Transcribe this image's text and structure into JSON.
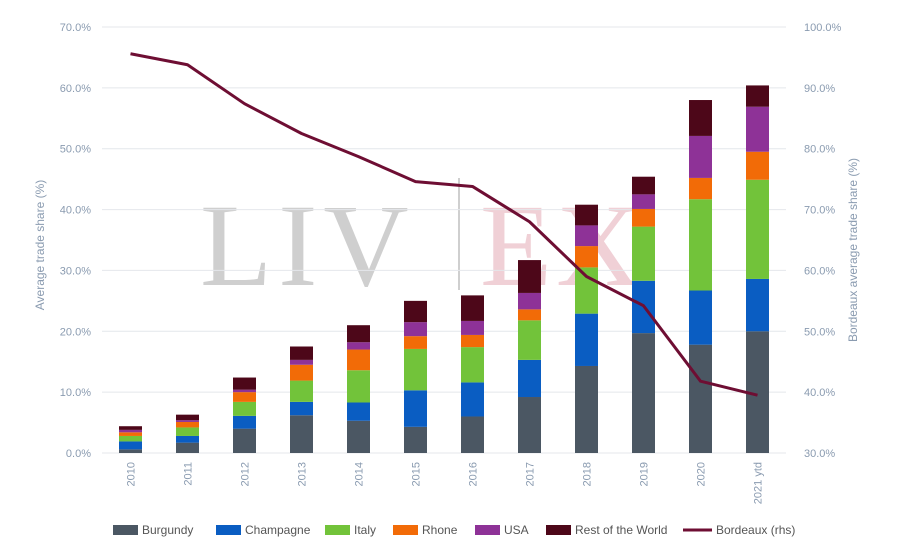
{
  "watermark": {
    "left": "LIV",
    "right": "EX"
  },
  "colors": {
    "Burgundy": "#4b5763",
    "Champagne": "#0a5dc2",
    "Italy": "#72c33a",
    "Rhone": "#f26b07",
    "USA": "#8e3297",
    "Rest of the World": "#4d0719",
    "Bordeaux (rhs)": "#6e0e33",
    "grid": "#e4e7eb",
    "tick": "#8a9bb0"
  },
  "chart_data": {
    "type": "bar",
    "stacked": true,
    "categories": [
      "2010",
      "2011",
      "2012",
      "2013",
      "2014",
      "2015",
      "2016",
      "2017",
      "2018",
      "2019",
      "2020",
      "2021 ytd"
    ],
    "ylabel": "Average trade share (%)",
    "ylabel_right": "Bordeaux average trade share (%)",
    "ylim": [
      0,
      70
    ],
    "yticks": [
      0,
      10,
      20,
      30,
      40,
      50,
      60,
      70
    ],
    "ytick_labels": [
      "0.0%",
      "10.0%",
      "20.0%",
      "30.0%",
      "40.0%",
      "50.0%",
      "60.0%",
      "70.0%"
    ],
    "ylim_right": [
      30,
      100
    ],
    "yticks_right": [
      30,
      40,
      50,
      60,
      70,
      80,
      90,
      100
    ],
    "ytick_labels_right": [
      "30.0%",
      "40.0%",
      "50.0%",
      "60.0%",
      "70.0%",
      "80.0%",
      "90.0%",
      "100.0%"
    ],
    "grid": true,
    "legend_position": "bottom",
    "series": [
      {
        "name": "Burgundy",
        "values": [
          0.6,
          1.7,
          4.0,
          6.2,
          5.3,
          4.3,
          6.0,
          9.2,
          14.3,
          19.7,
          17.8,
          20.0
        ]
      },
      {
        "name": "Champagne",
        "values": [
          1.3,
          1.1,
          2.1,
          2.2,
          3.0,
          6.0,
          5.6,
          6.1,
          8.6,
          8.6,
          8.9,
          8.6
        ]
      },
      {
        "name": "Italy",
        "values": [
          0.9,
          1.4,
          2.3,
          3.5,
          5.3,
          6.8,
          5.8,
          6.5,
          7.6,
          8.9,
          15.0,
          16.3
        ]
      },
      {
        "name": "Rhone",
        "values": [
          0.6,
          0.9,
          1.6,
          2.6,
          3.4,
          2.1,
          2.0,
          1.8,
          3.5,
          2.9,
          3.5,
          4.6
        ]
      },
      {
        "name": "USA",
        "values": [
          0.4,
          0.3,
          0.4,
          0.8,
          1.2,
          2.3,
          2.3,
          2.7,
          3.4,
          2.4,
          6.9,
          7.4
        ]
      },
      {
        "name": "Rest of the World",
        "values": [
          0.6,
          0.9,
          2.0,
          2.2,
          2.8,
          3.5,
          4.2,
          5.4,
          3.4,
          2.9,
          5.9,
          3.5
        ]
      }
    ],
    "line_series": {
      "name": "Bordeaux (rhs)",
      "axis": "right",
      "values": [
        95.6,
        93.8,
        87.4,
        82.5,
        78.7,
        74.6,
        73.8,
        68.0,
        59.0,
        54.2,
        41.8,
        39.5
      ]
    }
  }
}
